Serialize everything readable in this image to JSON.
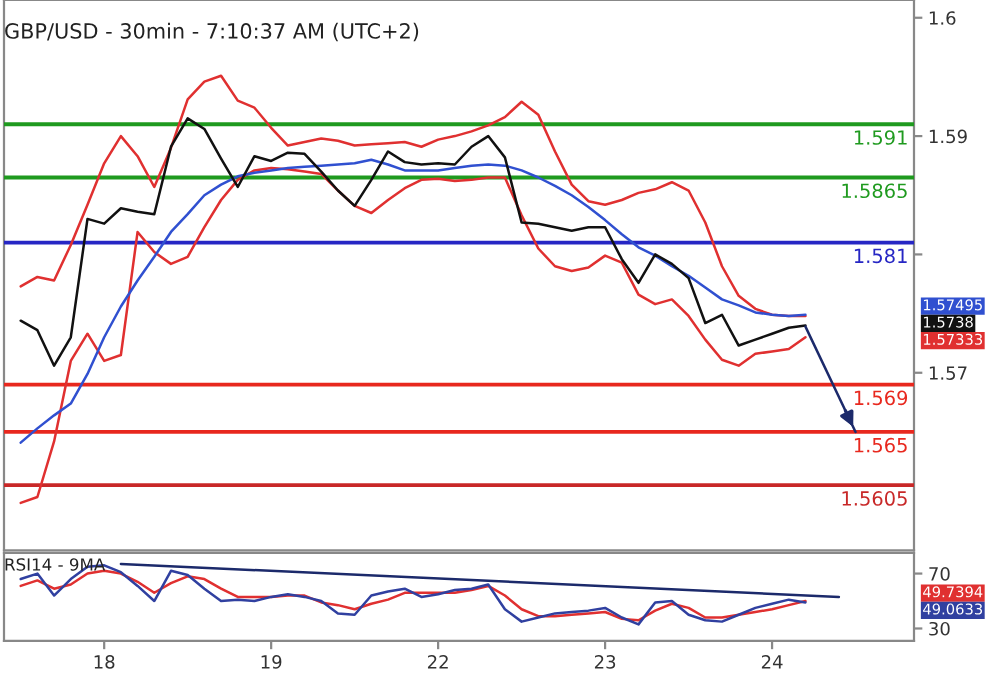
{
  "chart_data": [
    {
      "type": "line",
      "title": "GBP/USD - 30min - 7:10:37 AM (UTC+2)",
      "categories": [
        null,
        null,
        null,
        null,
        null,
        "18",
        null,
        null,
        null,
        null,
        null,
        null,
        null,
        null,
        null,
        "19",
        null,
        null,
        null,
        null,
        null,
        null,
        null,
        null,
        null,
        "22",
        null,
        null,
        null,
        null,
        null,
        null,
        null,
        null,
        null,
        "23",
        null,
        null,
        null,
        null,
        null,
        null,
        null,
        null,
        null,
        "24",
        null,
        null,
        null,
        null,
        null,
        null,
        null,
        null
      ],
      "tick_labels": "y",
      "ylim": [
        1.555,
        1.6015
      ],
      "yticks": [
        1.57,
        {
          "value": 1.58,
          "label": null
        },
        1.59,
        1.6
      ],
      "series": [
        {
          "color": "#e03030",
          "values": [
            1.5773,
            1.5781,
            1.5778,
            1.5808,
            1.5842,
            1.5877,
            1.59,
            1.5883,
            1.5857,
            1.589,
            1.5931,
            1.5946,
            1.5951,
            1.593,
            1.5924,
            1.5907,
            1.5892,
            1.5895,
            1.5898,
            1.5896,
            1.5892,
            1.5893,
            1.5894,
            1.5895,
            1.5891,
            1.5897,
            1.59,
            1.5904,
            1.5909,
            1.5916,
            1.5929,
            1.5918,
            1.5887,
            1.5859,
            1.5845,
            1.5842,
            1.5846,
            1.5852,
            1.5855,
            1.5861,
            1.5854,
            1.5827,
            1.579,
            1.5765,
            1.5754,
            1.5749,
            1.5748,
            1.5748,
            null,
            null,
            null,
            null,
            null,
            null
          ]
        },
        {
          "color": "#e03030",
          "values": [
            1.559,
            1.5595,
            1.5642,
            1.571,
            1.5733,
            1.571,
            1.5715,
            1.5819,
            1.5802,
            1.5792,
            1.5798,
            1.5823,
            1.5846,
            1.5863,
            1.5871,
            1.5873,
            1.5872,
            1.587,
            1.5868,
            1.5854,
            1.5841,
            1.5835,
            1.5846,
            1.5856,
            1.5863,
            1.5864,
            1.5862,
            1.5863,
            1.5865,
            1.5865,
            1.5833,
            1.5805,
            1.579,
            1.5786,
            1.5789,
            1.5799,
            1.5793,
            1.5766,
            1.5758,
            1.5762,
            1.5748,
            1.5728,
            1.5711,
            1.5706,
            1.5716,
            1.5718,
            1.572,
            1.573,
            null,
            null,
            null,
            null,
            null,
            null
          ]
        },
        {
          "color": "#3050d0",
          "values": [
            1.5641,
            1.5653,
            1.5664,
            1.5674,
            1.5699,
            1.573,
            1.5756,
            1.5778,
            1.5798,
            1.5819,
            1.5834,
            1.585,
            1.5859,
            1.5866,
            1.5869,
            1.5871,
            1.5873,
            1.5874,
            1.5875,
            1.5876,
            1.5877,
            1.588,
            1.5876,
            1.5871,
            1.5871,
            1.5871,
            1.5873,
            1.5875,
            1.5876,
            1.5875,
            1.5871,
            1.5865,
            1.5858,
            1.585,
            1.584,
            1.5829,
            1.5817,
            1.5806,
            1.5799,
            1.579,
            1.5782,
            1.5772,
            1.5762,
            1.5757,
            1.5751,
            1.5749,
            1.5748,
            1.5749,
            null,
            null,
            null,
            null,
            null,
            null
          ]
        },
        {
          "color": "#111111",
          "values": [
            1.5744,
            1.5736,
            1.5706,
            1.573,
            1.583,
            1.5826,
            1.5839,
            1.5836,
            1.5834,
            1.5891,
            1.5915,
            1.5906,
            1.5881,
            1.5857,
            1.5883,
            1.5879,
            1.5886,
            1.5885,
            1.587,
            1.5854,
            1.5841,
            1.5863,
            1.5887,
            1.5878,
            1.5876,
            1.5877,
            1.5876,
            1.5891,
            1.59,
            1.5882,
            1.5827,
            1.5826,
            1.5823,
            1.582,
            1.5823,
            1.5823,
            1.5796,
            1.5776,
            1.58,
            1.5792,
            1.578,
            1.5742,
            1.5749,
            1.5723,
            1.5728,
            1.5733,
            1.5738,
            1.574,
            null,
            null,
            null,
            null,
            null,
            null
          ]
        },
        {
          "color": "#1c2a6b",
          "values": [
            null,
            null,
            null,
            null,
            null,
            null,
            null,
            null,
            null,
            null,
            null,
            null,
            null,
            null,
            null,
            null,
            null,
            null,
            null,
            null,
            null,
            null,
            null,
            null,
            null,
            null,
            null,
            null,
            null,
            null,
            null,
            null,
            null,
            null,
            null,
            null,
            null,
            null,
            null,
            null,
            null,
            null,
            null,
            null,
            null,
            null,
            null,
            1.5739,
            null,
            null,
            1.565,
            null,
            null,
            null
          ]
        }
      ],
      "ref_lines": [
        {
          "axis": "y",
          "value": 1.591,
          "label": "1.591",
          "color": "#1f9a1f"
        },
        {
          "axis": "y",
          "value": 1.5865,
          "label": "1.5865",
          "color": "#1f9a1f"
        },
        {
          "axis": "y",
          "value": 1.581,
          "label": "1.581",
          "color": "#2626c4"
        },
        {
          "axis": "y",
          "value": 1.569,
          "label": "1.569",
          "color": "#e8281e"
        },
        {
          "axis": "y",
          "value": 1.565,
          "label": "1.565",
          "color": "#e8281e"
        },
        {
          "axis": "y",
          "value": 1.5605,
          "label": "1.5605",
          "color": "#c82828"
        }
      ],
      "annotations": [
        "1.57495",
        "1.5738",
        "1.57333"
      ]
    },
    {
      "type": "line",
      "title": "RSI14 - 9MA",
      "categories": [
        null,
        null,
        null,
        null,
        null,
        "18",
        null,
        null,
        null,
        null,
        null,
        null,
        null,
        null,
        null,
        "19",
        null,
        null,
        null,
        null,
        null,
        null,
        null,
        null,
        null,
        "22",
        null,
        null,
        null,
        null,
        null,
        null,
        null,
        null,
        null,
        "23",
        null,
        null,
        null,
        null,
        null,
        null,
        null,
        null,
        null,
        "24",
        null,
        null,
        null,
        null,
        null,
        null,
        null,
        null
      ],
      "ylim": [
        21,
        85
      ],
      "yticks": [
        30,
        70
      ],
      "series": [
        {
          "color": "#e03030",
          "values": [
            61,
            65,
            59,
            62,
            70,
            72,
            70,
            64,
            56,
            63,
            68,
            66,
            59,
            53,
            53,
            53,
            54,
            54,
            49,
            47,
            44,
            48,
            51,
            56,
            56,
            56,
            56,
            58,
            61,
            54,
            44,
            39,
            39,
            40,
            41,
            42,
            37,
            36,
            43,
            48,
            45,
            38,
            38,
            40,
            42,
            44,
            47,
            50,
            null,
            null,
            null,
            null,
            null,
            null
          ]
        },
        {
          "color": "#3040a0",
          "values": [
            66,
            70,
            54,
            66,
            75,
            76,
            71,
            61,
            50,
            72,
            69,
            59,
            50,
            51,
            50,
            53,
            55,
            53,
            50,
            41,
            40,
            54,
            57,
            59,
            53,
            55,
            58,
            59,
            62,
            44,
            35,
            38,
            41,
            42,
            43,
            45,
            38,
            33,
            49,
            50,
            40,
            36,
            35,
            40,
            45,
            48,
            51,
            49,
            null,
            null,
            null,
            null,
            null,
            null
          ]
        },
        {
          "color": "#1c2a6b",
          "values": [
            null,
            null,
            null,
            null,
            null,
            null,
            77,
            null,
            null,
            null,
            null,
            null,
            null,
            null,
            null,
            null,
            null,
            null,
            null,
            null,
            null,
            null,
            null,
            null,
            null,
            null,
            null,
            null,
            null,
            null,
            null,
            null,
            null,
            null,
            null,
            null,
            null,
            null,
            null,
            null,
            null,
            null,
            null,
            null,
            null,
            null,
            null,
            null,
            null,
            53,
            null,
            null,
            null,
            null
          ]
        }
      ],
      "annotations": [
        "49.7394",
        "49.0633"
      ]
    }
  ]
}
